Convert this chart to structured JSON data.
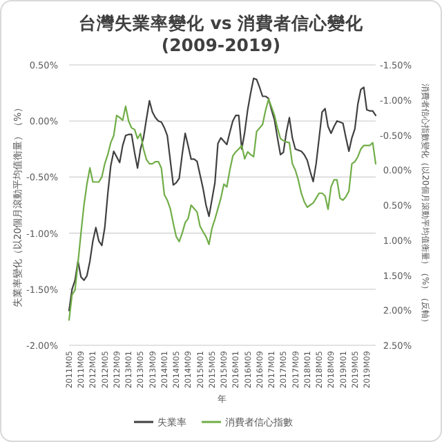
{
  "chart_data": {
    "type": "line",
    "title": "台灣失業率變化 vs 消費者信心變化",
    "subtitle": "(2009-2019)",
    "xlabel": "年",
    "ylabel": "失業率變化（以20個月滾動平均值衡量）（%）",
    "y2label": "消費者信心指數變化（以20個月滾動平均值衡量）（%）（反軸）",
    "categories": [
      "2011M05",
      null,
      null,
      null,
      "2011M09",
      null,
      null,
      null,
      "2012M01",
      null,
      null,
      null,
      "2012M05",
      null,
      null,
      null,
      "2012M09",
      null,
      null,
      null,
      "2013M01",
      null,
      null,
      null,
      "2013M05",
      null,
      null,
      null,
      "2013M09",
      null,
      null,
      null,
      "2014M01",
      null,
      null,
      null,
      "2014M05",
      null,
      null,
      null,
      "2014M09",
      null,
      null,
      null,
      "2015M01",
      null,
      null,
      null,
      "2015M05",
      null,
      null,
      null,
      "2015M09",
      null,
      null,
      null,
      "2016M01",
      null,
      null,
      null,
      "2016M05",
      null,
      null,
      null,
      "2016M09",
      null,
      null,
      null,
      "2017M01",
      null,
      null,
      null,
      "2017M05",
      null,
      null,
      null,
      "2017M09",
      null,
      null,
      null,
      "2018M01",
      null,
      null,
      null,
      "2018M05",
      null,
      null,
      null,
      "2018M09",
      null,
      null,
      null,
      "2019M01",
      null,
      null,
      null,
      "2019M05",
      null,
      null,
      null,
      "2019M09",
      null,
      null,
      null
    ],
    "series": [
      {
        "name": "失業率",
        "color": "#404040",
        "axis": "y",
        "values": [
          -1.69,
          -1.5,
          -1.42,
          -1.25,
          -1.39,
          -1.42,
          -1.38,
          -1.25,
          -1.07,
          -0.95,
          -1.07,
          -1.11,
          -0.95,
          -0.65,
          -0.4,
          -0.27,
          -0.32,
          -0.37,
          -0.22,
          -0.13,
          -0.12,
          -0.12,
          -0.28,
          -0.42,
          -0.25,
          -0.15,
          0.02,
          0.18,
          0.08,
          0.03,
          0.0,
          -0.01,
          -0.06,
          -0.13,
          -0.35,
          -0.57,
          -0.55,
          -0.51,
          -0.3,
          -0.11,
          -0.22,
          -0.34,
          -0.34,
          -0.36,
          -0.48,
          -0.6,
          -0.75,
          -0.85,
          -0.7,
          -0.55,
          -0.2,
          -0.15,
          -0.18,
          -0.21,
          -0.1,
          0.0,
          0.05,
          0.05,
          -0.25,
          -0.1,
          0.1,
          0.25,
          0.38,
          0.37,
          0.3,
          0.22,
          0.22,
          0.2,
          0.1,
          0.01,
          -0.15,
          -0.3,
          -0.28,
          -0.1,
          0.03,
          -0.15,
          -0.25,
          -0.26,
          -0.27,
          -0.3,
          -0.35,
          -0.45,
          -0.54,
          -0.38,
          -0.15,
          0.08,
          0.11,
          -0.05,
          -0.11,
          -0.05,
          0.0,
          -0.01,
          -0.02,
          -0.15,
          -0.27,
          -0.15,
          -0.07,
          0.15,
          0.28,
          0.3,
          0.1,
          0.09,
          0.09,
          0.05
        ]
      },
      {
        "name": "消費者信心指數",
        "color": "#70ad47",
        "axis": "y2",
        "values": [
          2.14,
          1.78,
          1.71,
          1.32,
          0.9,
          0.5,
          0.2,
          -0.03,
          0.17,
          0.17,
          0.17,
          0.1,
          -0.09,
          -0.22,
          -0.39,
          -0.49,
          -0.78,
          -0.75,
          -0.71,
          -0.91,
          -0.7,
          -0.6,
          -0.58,
          -0.45,
          -0.52,
          -0.3,
          -0.15,
          -0.09,
          -0.09,
          -0.12,
          -0.12,
          -0.03,
          0.35,
          0.43,
          0.55,
          0.76,
          0.95,
          1.02,
          0.9,
          0.75,
          0.69,
          0.5,
          0.55,
          0.6,
          0.8,
          0.88,
          0.95,
          1.06,
          0.83,
          0.7,
          0.55,
          0.4,
          0.2,
          0.24,
          0.0,
          -0.2,
          -0.26,
          -0.3,
          -0.35,
          -0.16,
          -0.26,
          -0.22,
          -0.19,
          -0.55,
          -0.6,
          -0.65,
          -0.85,
          -1.01,
          -0.9,
          -0.78,
          -0.6,
          -0.45,
          -0.42,
          -0.4,
          -0.39,
          -0.09,
          0.0,
          0.14,
          0.33,
          0.45,
          0.53,
          0.5,
          0.47,
          0.4,
          0.33,
          0.33,
          0.37,
          0.56,
          0.24,
          0.14,
          0.14,
          0.4,
          0.43,
          0.38,
          0.3,
          -0.09,
          -0.12,
          -0.19,
          -0.3,
          -0.35,
          -0.35,
          -0.35,
          -0.39,
          -0.09
        ]
      }
    ],
    "ylim": [
      -2.0,
      0.5
    ],
    "yticks": [
      {
        "value": -2.0,
        "label": "-2.00%"
      },
      {
        "value": -1.5,
        "label": "-1.50%"
      },
      {
        "value": -1.0,
        "label": "-1.00%"
      },
      {
        "value": -0.5,
        "label": "-0.50%"
      },
      {
        "value": 0.0,
        "label": "0.00%"
      },
      {
        "value": 0.5,
        "label": "0.50%"
      }
    ],
    "y2lim": [
      2.5,
      -1.5
    ],
    "y2ticks": [
      {
        "value": 2.5,
        "label": "2.50%"
      },
      {
        "value": 2.0,
        "label": "2.00%"
      },
      {
        "value": 1.5,
        "label": "1.50%"
      },
      {
        "value": 1.0,
        "label": "1.00%"
      },
      {
        "value": 0.5,
        "label": "0.50%"
      },
      {
        "value": 0.0,
        "label": "0.00%"
      },
      {
        "value": -0.5,
        "label": "-0.50%"
      },
      {
        "value": -1.0,
        "label": "-1.00%"
      },
      {
        "value": -1.5,
        "label": "-1.50%"
      }
    ],
    "grid": "y",
    "legend": "bottom"
  }
}
